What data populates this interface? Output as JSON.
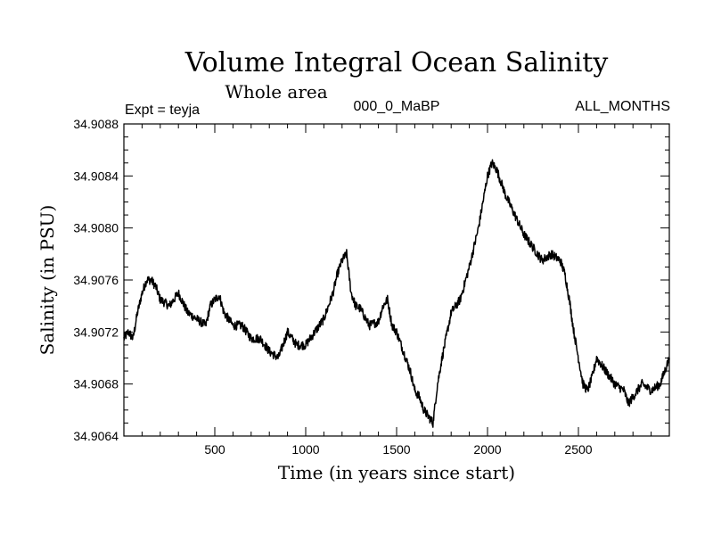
{
  "chart_data": {
    "type": "line",
    "title": "Volume Integral Ocean Salinity",
    "subtitle": "Whole area",
    "left_label": "Expt = teyja",
    "center_label": "000_0_MaBP",
    "right_label": "ALL_MONTHS",
    "xlabel": "Time (in years since start)",
    "ylabel": "Salinity (in PSU)",
    "xlim": [
      0,
      3000
    ],
    "ylim": [
      34.9064,
      34.9088
    ],
    "xticks": [
      500,
      1000,
      1500,
      2000,
      2500
    ],
    "xtick_labels": [
      "500",
      "1000",
      "1500",
      "2000",
      "2500"
    ],
    "yticks": [
      34.9064,
      34.9068,
      34.9072,
      34.9076,
      34.908,
      34.9084,
      34.9088
    ],
    "ytick_labels": [
      "34.9064",
      "34.9068",
      "34.9072",
      "34.9076",
      "34.9080",
      "34.9084",
      "34.9088"
    ],
    "grid": false,
    "series": [
      {
        "name": "Salinity",
        "color": "#000000",
        "x": [
          0,
          25,
          50,
          75,
          100,
          125,
          150,
          175,
          200,
          250,
          300,
          350,
          400,
          450,
          475,
          500,
          525,
          550,
          600,
          650,
          700,
          750,
          800,
          850,
          900,
          950,
          1000,
          1050,
          1100,
          1150,
          1175,
          1200,
          1225,
          1250,
          1275,
          1300,
          1350,
          1400,
          1425,
          1450,
          1475,
          1500,
          1550,
          1575,
          1600,
          1625,
          1650,
          1675,
          1700,
          1725,
          1750,
          1800,
          1850,
          1900,
          1950,
          1975,
          2000,
          2025,
          2050,
          2075,
          2100,
          2150,
          2200,
          2250,
          2300,
          2350,
          2400,
          2425,
          2450,
          2475,
          2500,
          2525,
          2550,
          2575,
          2600,
          2650,
          2700,
          2750,
          2775,
          2800,
          2850,
          2900,
          2950,
          3000
        ],
        "values": [
          34.90715,
          34.9072,
          34.90715,
          34.90735,
          34.9075,
          34.9076,
          34.9076,
          34.90755,
          34.90745,
          34.9074,
          34.9075,
          34.90735,
          34.9073,
          34.90725,
          34.9074,
          34.90745,
          34.90748,
          34.90735,
          34.90725,
          34.90725,
          34.90715,
          34.90715,
          34.90705,
          34.907,
          34.9072,
          34.9071,
          34.9071,
          34.9072,
          34.9073,
          34.9075,
          34.90765,
          34.90775,
          34.9078,
          34.9075,
          34.9074,
          34.90738,
          34.90725,
          34.90728,
          34.9074,
          34.90745,
          34.90725,
          34.9072,
          34.907,
          34.9069,
          34.90675,
          34.9067,
          34.9066,
          34.90655,
          34.9065,
          34.9068,
          34.907,
          34.90735,
          34.90745,
          34.9077,
          34.908,
          34.9082,
          34.9084,
          34.9085,
          34.90845,
          34.90835,
          34.90825,
          34.9081,
          34.90795,
          34.90785,
          34.90775,
          34.9078,
          34.90775,
          34.90765,
          34.90745,
          34.9072,
          34.907,
          34.9068,
          34.90675,
          34.90685,
          34.907,
          34.9069,
          34.9068,
          34.90675,
          34.90665,
          34.9067,
          34.9068,
          34.90675,
          34.9068,
          34.907
        ]
      }
    ]
  }
}
